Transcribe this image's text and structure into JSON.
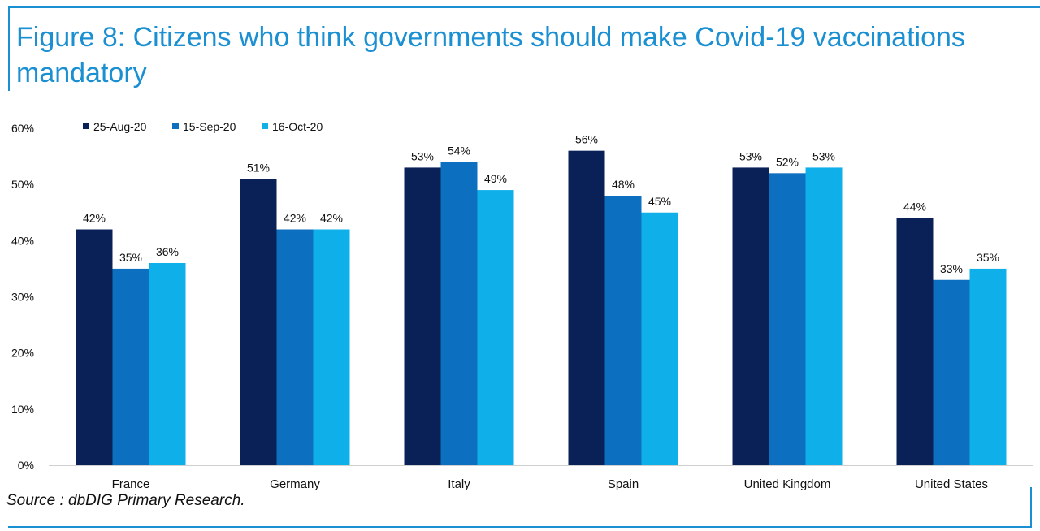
{
  "title": "Figure 8: Citizens who think governments should make Covid-19 vaccinations mandatory",
  "source": "Source : dbDIG Primary Research.",
  "colors": {
    "frame": "#1a8fd1",
    "title": "#1a8fd1"
  },
  "chart_data": {
    "type": "bar",
    "title": "Figure 8: Citizens who think governments should make Covid-19 vaccinations mandatory",
    "xlabel": "",
    "ylabel": "",
    "ylim": [
      0,
      60
    ],
    "yticks": [
      "0%",
      "10%",
      "20%",
      "30%",
      "40%",
      "50%",
      "60%"
    ],
    "ytick_values": [
      0,
      10,
      20,
      30,
      40,
      50,
      60
    ],
    "grid": false,
    "legend_position": "top-left",
    "categories": [
      "France",
      "Germany",
      "Italy",
      "Spain",
      "United Kingdom",
      "United States"
    ],
    "series": [
      {
        "name": "25-Aug-20",
        "color": "#0a2158",
        "values": [
          42,
          51,
          53,
          56,
          53,
          44
        ],
        "labels": [
          "42%",
          "51%",
          "53%",
          "56%",
          "53%",
          "44%"
        ]
      },
      {
        "name": "15-Sep-20",
        "color": "#0c6fc0",
        "values": [
          35,
          42,
          54,
          48,
          52,
          33
        ],
        "labels": [
          "35%",
          "42%",
          "54%",
          "48%",
          "52%",
          "33%"
        ]
      },
      {
        "name": "16-Oct-20",
        "color": "#0fb0ea",
        "values": [
          36,
          42,
          49,
          45,
          53,
          35
        ],
        "labels": [
          "36%",
          "42%",
          "49%",
          "45%",
          "53%",
          "35%"
        ]
      }
    ]
  }
}
